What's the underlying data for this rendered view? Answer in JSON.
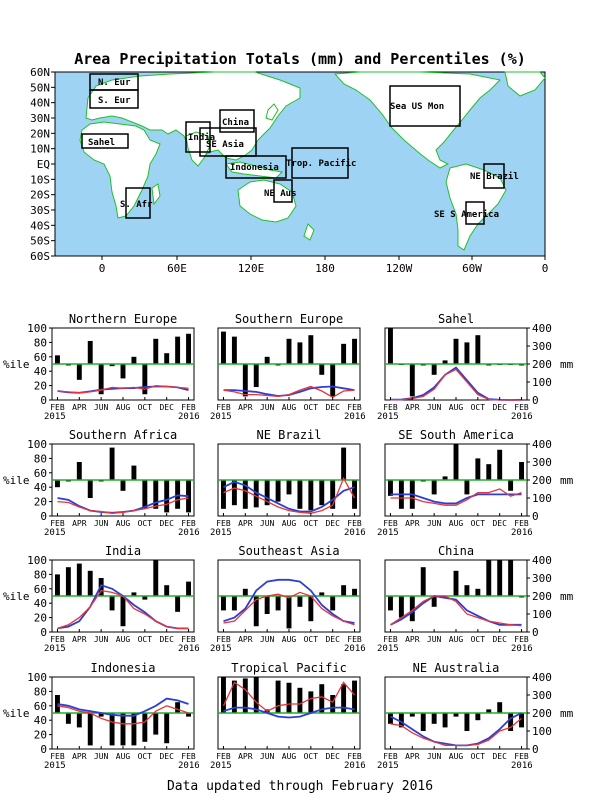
{
  "page": {
    "title": "Area Precipitation Totals (mm) and Percentiles (%)",
    "footer": "Data updated through February 2016"
  },
  "map": {
    "lat_labels": [
      "60N",
      "50N",
      "40N",
      "30N",
      "20N",
      "10N",
      "EQ",
      "10S",
      "20S",
      "30S",
      "40S",
      "50S",
      "60S"
    ],
    "lon_labels": [
      "0",
      "60E",
      "120E",
      "180",
      "120W",
      "60W",
      "0"
    ],
    "region_labels": {
      "n_eur": "N. Eur",
      "s_eur": "S. Eur",
      "sahel": "Sahel",
      "s_afr": "S. Afr",
      "india": "India",
      "china": "China",
      "se_asia": "SE Asia",
      "indonesia": "Indonesia",
      "trop_pacific": "Trop. Pacific",
      "ne_aus": "NE Aus",
      "sea_us": "Sea US Mon",
      "ne_brazil": "NE Brazil",
      "se_s_america": "SE S America"
    },
    "colors": {
      "ocean": "#9fd3f3",
      "land": "#ffffff",
      "coast": "#1fbf2a",
      "box": "#000000",
      "label": "#e8343a"
    }
  },
  "axes": {
    "pct_label": "%ile",
    "mm_label": "mm",
    "pct_ticks": [
      "0",
      "20",
      "40",
      "60",
      "80",
      "100"
    ],
    "mm_ticks": [
      "0",
      "100",
      "200",
      "300",
      "400"
    ],
    "month_labels": [
      "FEB",
      "APR",
      "JUN",
      "AUG",
      "OCT",
      "DEC",
      "FEB"
    ],
    "year_start": "2015",
    "year_end": "2016",
    "reference_percentile": 50
  },
  "chart_data": [
    {
      "type": "bar",
      "title": "Northern Europe",
      "months": [
        "Feb 2015",
        "Mar 2015",
        "Apr 2015",
        "May 2015",
        "Jun 2015",
        "Jul 2015",
        "Aug 2015",
        "Sep 2015",
        "Oct 2015",
        "Nov 2015",
        "Dec 2015",
        "Jan 2016",
        "Feb 2016"
      ],
      "percentile": [
        62,
        48,
        28,
        82,
        8,
        47,
        30,
        60,
        8,
        85,
        65,
        88,
        92
      ],
      "observed_mm": [
        50,
        45,
        40,
        45,
        55,
        70,
        65,
        70,
        60,
        80,
        75,
        70,
        65
      ],
      "normal_mm": [
        50,
        42,
        40,
        48,
        58,
        62,
        66,
        66,
        72,
        75,
        75,
        70,
        55
      ],
      "ylim_pct": [
        0,
        100
      ],
      "ylim_mm": [
        0,
        400
      ]
    },
    {
      "type": "bar",
      "title": "Southern Europe",
      "months": [
        "Feb 2015",
        "Mar 2015",
        "Apr 2015",
        "May 2015",
        "Jun 2015",
        "Jul 2015",
        "Aug 2015",
        "Sep 2015",
        "Oct 2015",
        "Nov 2015",
        "Dec 2015",
        "Jan 2016",
        "Feb 2016"
      ],
      "percentile": [
        95,
        88,
        5,
        18,
        60,
        48,
        85,
        80,
        90,
        35,
        5,
        78,
        85
      ],
      "observed_mm": [
        55,
        45,
        30,
        30,
        25,
        20,
        30,
        55,
        75,
        50,
        15,
        50,
        55
      ],
      "normal_mm": [
        55,
        55,
        50,
        45,
        32,
        22,
        28,
        45,
        65,
        72,
        75,
        65,
        55
      ],
      "ylim_pct": [
        0,
        100
      ],
      "ylim_mm": [
        0,
        400
      ]
    },
    {
      "type": "bar",
      "title": "Sahel",
      "months": [
        "Feb 2015",
        "Mar 2015",
        "Apr 2015",
        "May 2015",
        "Jun 2015",
        "Jul 2015",
        "Aug 2015",
        "Sep 2015",
        "Oct 2015",
        "Nov 2015",
        "Dec 2015",
        "Jan 2016",
        "Feb 2016"
      ],
      "percentile": [
        100,
        50,
        5,
        48,
        35,
        55,
        85,
        80,
        90,
        48,
        50,
        50,
        48
      ],
      "observed_mm": [
        2,
        2,
        8,
        20,
        60,
        140,
        170,
        100,
        30,
        3,
        1,
        0,
        0
      ],
      "normal_mm": [
        2,
        3,
        10,
        28,
        70,
        140,
        180,
        110,
        40,
        5,
        1,
        0,
        1
      ],
      "ylim_pct": [
        0,
        100
      ],
      "ylim_mm": [
        0,
        400
      ]
    },
    {
      "type": "bar",
      "title": "Southern Africa",
      "months": [
        "Feb 2015",
        "Mar 2015",
        "Apr 2015",
        "May 2015",
        "Jun 2015",
        "Jul 2015",
        "Aug 2015",
        "Sep 2015",
        "Oct 2015",
        "Nov 2015",
        "Dec 2015",
        "Jan 2016",
        "Feb 2016"
      ],
      "percentile": [
        40,
        48,
        75,
        25,
        48,
        95,
        35,
        70,
        10,
        10,
        5,
        10,
        5
      ],
      "observed_mm": [
        80,
        75,
        50,
        30,
        25,
        15,
        20,
        30,
        40,
        55,
        65,
        90,
        100
      ],
      "normal_mm": [
        100,
        90,
        55,
        30,
        22,
        18,
        22,
        30,
        50,
        75,
        90,
        115,
        110
      ],
      "ylim_pct": [
        0,
        100
      ],
      "ylim_mm": [
        0,
        400
      ]
    },
    {
      "type": "bar",
      "title": "NE Brazil",
      "months": [
        "Feb 2015",
        "Mar 2015",
        "Apr 2015",
        "May 2015",
        "Jun 2015",
        "Jul 2015",
        "Aug 2015",
        "Sep 2015",
        "Oct 2015",
        "Nov 2015",
        "Dec 2015",
        "Jan 2016",
        "Feb 2016"
      ],
      "percentile": [
        10,
        15,
        10,
        12,
        15,
        20,
        30,
        10,
        8,
        15,
        10,
        95,
        10
      ],
      "observed_mm": [
        130,
        155,
        140,
        110,
        80,
        50,
        30,
        20,
        15,
        30,
        60,
        210,
        100
      ],
      "normal_mm": [
        160,
        190,
        170,
        130,
        100,
        70,
        40,
        25,
        25,
        50,
        90,
        140,
        160
      ],
      "ylim_pct": [
        0,
        100
      ],
      "ylim_mm": [
        0,
        400
      ]
    },
    {
      "type": "bar",
      "title": "SE South America",
      "months": [
        "Feb 2015",
        "Mar 2015",
        "Apr 2015",
        "May 2015",
        "Jun 2015",
        "Jul 2015",
        "Aug 2015",
        "Sep 2015",
        "Oct 2015",
        "Nov 2015",
        "Dec 2015",
        "Jan 2016",
        "Feb 2016"
      ],
      "percentile": [
        28,
        10,
        10,
        48,
        30,
        55,
        100,
        30,
        80,
        72,
        92,
        35,
        75
      ],
      "observed_mm": [
        100,
        100,
        100,
        80,
        70,
        60,
        60,
        90,
        130,
        130,
        150,
        110,
        130
      ],
      "normal_mm": [
        120,
        120,
        120,
        100,
        80,
        70,
        70,
        100,
        120,
        120,
        120,
        120,
        120
      ],
      "ylim_pct": [
        0,
        100
      ],
      "ylim_mm": [
        0,
        400
      ]
    },
    {
      "type": "bar",
      "title": "India",
      "months": [
        "Feb 2015",
        "Mar 2015",
        "Apr 2015",
        "May 2015",
        "Jun 2015",
        "Jul 2015",
        "Aug 2015",
        "Sep 2015",
        "Oct 2015",
        "Nov 2015",
        "Dec 2015",
        "Jan 2016",
        "Feb 2016"
      ],
      "percentile": [
        80,
        90,
        95,
        85,
        75,
        30,
        8,
        55,
        45,
        100,
        65,
        28,
        70
      ],
      "observed_mm": [
        20,
        40,
        80,
        140,
        230,
        220,
        200,
        130,
        100,
        60,
        30,
        20,
        20
      ],
      "normal_mm": [
        20,
        30,
        60,
        140,
        260,
        240,
        200,
        150,
        110,
        60,
        30,
        20,
        20
      ],
      "ylim_pct": [
        0,
        100
      ],
      "ylim_mm": [
        0,
        400
      ]
    },
    {
      "type": "bar",
      "title": "Southeast Asia",
      "months": [
        "Feb 2015",
        "Mar 2015",
        "Apr 2015",
        "May 2015",
        "Jun 2015",
        "Jul 2015",
        "Aug 2015",
        "Sep 2015",
        "Oct 2015",
        "Nov 2015",
        "Dec 2015",
        "Jan 2016",
        "Feb 2016"
      ],
      "percentile": [
        30,
        30,
        60,
        8,
        25,
        30,
        5,
        35,
        15,
        55,
        30,
        65,
        60
      ],
      "observed_mm": [
        50,
        60,
        120,
        180,
        200,
        210,
        190,
        220,
        200,
        130,
        90,
        60,
        40
      ],
      "normal_mm": [
        60,
        80,
        130,
        230,
        280,
        290,
        290,
        280,
        230,
        150,
        100,
        60,
        50
      ],
      "ylim_pct": [
        0,
        100
      ],
      "ylim_mm": [
        0,
        400
      ]
    },
    {
      "type": "bar",
      "title": "China",
      "months": [
        "Feb 2015",
        "Mar 2015",
        "Apr 2015",
        "May 2015",
        "Jun 2015",
        "Jul 2015",
        "Aug 2015",
        "Sep 2015",
        "Oct 2015",
        "Nov 2015",
        "Dec 2015",
        "Jan 2016",
        "Feb 2016"
      ],
      "percentile": [
        30,
        20,
        15,
        90,
        35,
        48,
        85,
        65,
        60,
        100,
        100,
        100,
        48
      ],
      "observed_mm": [
        40,
        80,
        120,
        170,
        200,
        200,
        170,
        100,
        80,
        60,
        50,
        40,
        35
      ],
      "normal_mm": [
        40,
        70,
        110,
        160,
        200,
        190,
        180,
        120,
        90,
        60,
        40,
        40,
        40
      ],
      "ylim_pct": [
        0,
        100
      ],
      "ylim_mm": [
        0,
        400
      ]
    },
    {
      "type": "bar",
      "title": "Indonesia",
      "months": [
        "Feb 2015",
        "Mar 2015",
        "Apr 2015",
        "May 2015",
        "Jun 2015",
        "Jul 2015",
        "Aug 2015",
        "Sep 2015",
        "Oct 2015",
        "Nov 2015",
        "Dec 2015",
        "Jan 2016",
        "Feb 2016"
      ],
      "percentile": [
        75,
        35,
        30,
        5,
        45,
        5,
        5,
        5,
        10,
        20,
        8,
        65,
        45
      ],
      "observed_mm": [
        240,
        230,
        210,
        200,
        170,
        150,
        140,
        140,
        150,
        210,
        240,
        220,
        200
      ],
      "normal_mm": [
        250,
        240,
        220,
        210,
        200,
        190,
        185,
        185,
        210,
        240,
        280,
        270,
        250
      ],
      "ylim_pct": [
        0,
        100
      ],
      "ylim_mm": [
        0,
        400
      ]
    },
    {
      "type": "bar",
      "title": "Tropical Pacific",
      "months": [
        "Feb 2015",
        "Mar 2015",
        "Apr 2015",
        "May 2015",
        "Jun 2015",
        "Jul 2015",
        "Aug 2015",
        "Sep 2015",
        "Oct 2015",
        "Nov 2015",
        "Dec 2015",
        "Jan 2016",
        "Feb 2016"
      ],
      "percentile": [
        100,
        95,
        98,
        100,
        55,
        95,
        92,
        85,
        80,
        90,
        75,
        90,
        95
      ],
      "observed_mm": [
        240,
        370,
        330,
        260,
        210,
        240,
        250,
        250,
        280,
        290,
        260,
        370,
        300
      ],
      "normal_mm": [
        210,
        230,
        230,
        220,
        200,
        180,
        175,
        180,
        200,
        220,
        230,
        230,
        220
      ],
      "ylim_pct": [
        0,
        100
      ],
      "ylim_mm": [
        0,
        400
      ]
    },
    {
      "type": "bar",
      "title": "NE Australia",
      "months": [
        "Feb 2015",
        "Mar 2015",
        "Apr 2015",
        "May 2015",
        "Jun 2015",
        "Jul 2015",
        "Aug 2015",
        "Sep 2015",
        "Oct 2015",
        "Nov 2015",
        "Dec 2015",
        "Jan 2016",
        "Feb 2016"
      ],
      "percentile": [
        35,
        30,
        45,
        25,
        35,
        30,
        45,
        25,
        40,
        55,
        65,
        25,
        30
      ],
      "observed_mm": [
        140,
        130,
        90,
        60,
        40,
        20,
        20,
        20,
        25,
        50,
        100,
        120,
        170
      ],
      "normal_mm": [
        180,
        150,
        110,
        70,
        40,
        30,
        20,
        20,
        30,
        60,
        110,
        170,
        200
      ],
      "ylim_pct": [
        0,
        100
      ],
      "ylim_mm": [
        0,
        400
      ]
    }
  ]
}
